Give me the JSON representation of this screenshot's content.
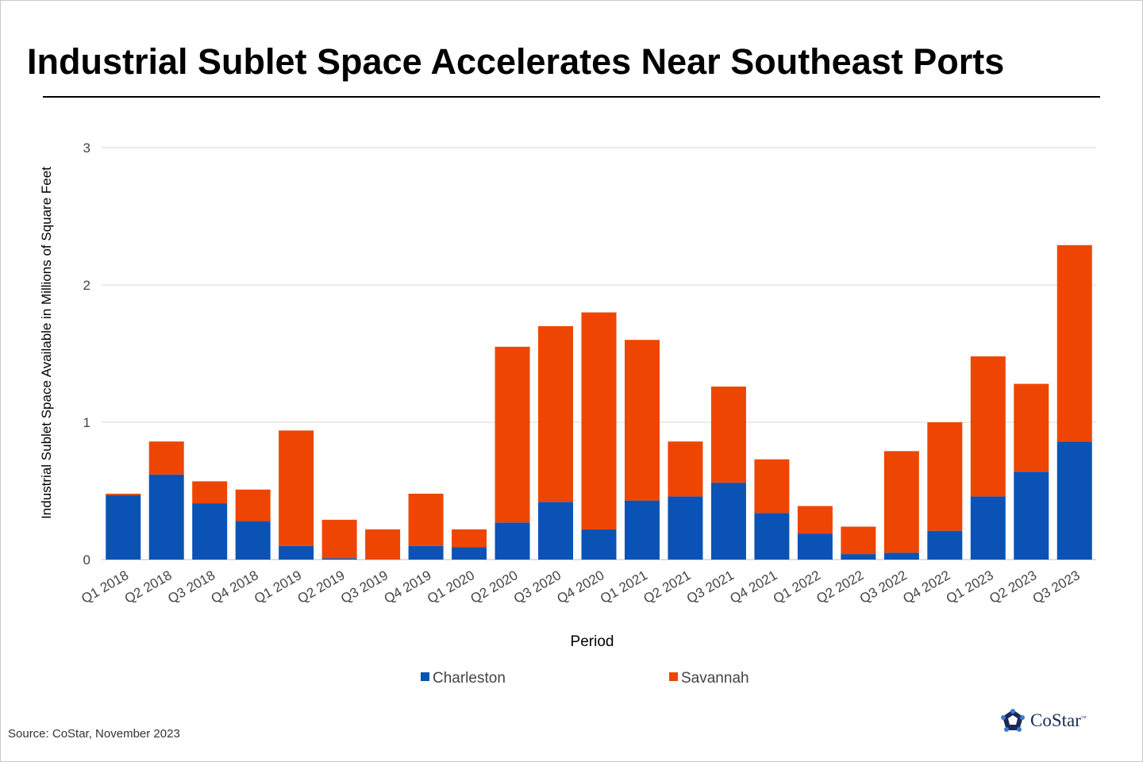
{
  "chart_data": {
    "type": "bar",
    "stacked": true,
    "title": "Industrial Sublet Space Accelerates Near Southeast Ports",
    "xlabel": "Period",
    "ylabel": "Industrial Sublet Space Available in Millions of Square Feet",
    "ylim": [
      0,
      3
    ],
    "yticks": [
      "0",
      "1",
      "2",
      "3"
    ],
    "grid": true,
    "legend_position": "bottom",
    "categories": [
      "Q1 2018",
      "Q2 2018",
      "Q3 2018",
      "Q4 2018",
      "Q1 2019",
      "Q2 2019",
      "Q3 2019",
      "Q4 2019",
      "Q1 2020",
      "Q2 2020",
      "Q3 2020",
      "Q4 2020",
      "Q1 2021",
      "Q2 2021",
      "Q3 2021",
      "Q4 2021",
      "Q1 2022",
      "Q2 2022",
      "Q3 2022",
      "Q4 2022",
      "Q1 2023",
      "Q2 2023",
      "Q3 2023"
    ],
    "series": [
      {
        "name": "Charleston",
        "color": "#0a53b5",
        "values": [
          0.47,
          0.62,
          0.41,
          0.28,
          0.1,
          0.01,
          0.0,
          0.1,
          0.09,
          0.27,
          0.42,
          0.22,
          0.43,
          0.46,
          0.56,
          0.34,
          0.19,
          0.04,
          0.05,
          0.21,
          0.46,
          0.64,
          0.86
        ]
      },
      {
        "name": "Savannah",
        "color": "#ee4602",
        "values": [
          0.01,
          0.24,
          0.16,
          0.23,
          0.84,
          0.28,
          0.22,
          0.38,
          0.13,
          1.28,
          1.28,
          1.58,
          1.17,
          0.4,
          0.7,
          0.39,
          0.2,
          0.2,
          0.74,
          0.79,
          1.02,
          0.64,
          1.43
        ]
      }
    ]
  },
  "source": "Source:  CoStar, November 2023",
  "logo": "CoStar"
}
